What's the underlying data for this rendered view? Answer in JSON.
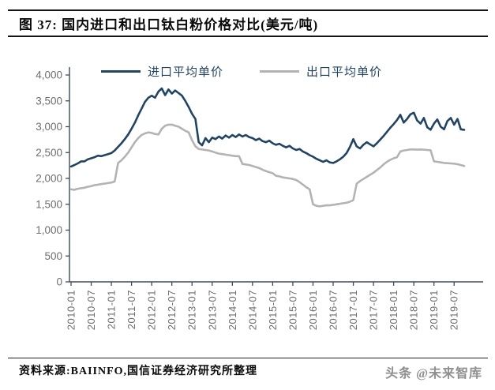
{
  "figure": {
    "number_title": "图 37:  国内进口和出口钛白粉价格对比(美元/吨)",
    "source": "资料来源:BAIINFO,国信证券经济研究所整理",
    "watermark": "头条 @未来智库"
  },
  "chart_data": {
    "type": "line",
    "title": "国内进口和出口钛白粉价格对比(美元/吨)",
    "xlabel": "",
    "ylabel": "",
    "ylim": [
      0,
      4000
    ],
    "y_tick_step": 500,
    "grid": false,
    "legend_position": "top",
    "x_interval": "monthly",
    "x_range": [
      "2010-01",
      "2019-10"
    ],
    "x_tick_labels": [
      "2010-01",
      "2010-07",
      "2011-01",
      "2011-07",
      "2012-01",
      "2012-07",
      "2013-01",
      "2013-07",
      "2014-01",
      "2014-07",
      "2015-01",
      "2015-07",
      "2016-01",
      "2016-07",
      "2017-01",
      "2017-07",
      "2018-01",
      "2018-07",
      "2019-01",
      "2019-07"
    ],
    "x_ticks_every_n_points": 6,
    "series": [
      {
        "name": "进口平均单价",
        "color": "#1f4467",
        "values": [
          2230,
          2260,
          2290,
          2330,
          2330,
          2370,
          2390,
          2410,
          2440,
          2430,
          2450,
          2470,
          2490,
          2540,
          2610,
          2680,
          2760,
          2850,
          2960,
          3080,
          3220,
          3350,
          3480,
          3560,
          3600,
          3560,
          3680,
          3740,
          3610,
          3720,
          3640,
          3700,
          3650,
          3600,
          3500,
          3380,
          3250,
          3150,
          2700,
          2640,
          2780,
          2700,
          2790,
          2760,
          2810,
          2770,
          2830,
          2790,
          2840,
          2800,
          2850,
          2810,
          2840,
          2800,
          2780,
          2740,
          2770,
          2720,
          2700,
          2730,
          2680,
          2650,
          2670,
          2630,
          2600,
          2630,
          2580,
          2550,
          2570,
          2520,
          2490,
          2450,
          2420,
          2380,
          2350,
          2320,
          2350,
          2310,
          2300,
          2330,
          2370,
          2420,
          2490,
          2610,
          2760,
          2620,
          2580,
          2650,
          2700,
          2660,
          2620,
          2680,
          2750,
          2820,
          2900,
          2980,
          3050,
          3130,
          3230,
          3080,
          3150,
          3240,
          3270,
          3120,
          3060,
          3170,
          2990,
          2940,
          3060,
          3140,
          3000,
          2950,
          3110,
          3170,
          3040,
          3150,
          2950,
          2940
        ]
      },
      {
        "name": "出口平均单价",
        "color": "#b3b3b3",
        "values": [
          1790,
          1780,
          1800,
          1810,
          1820,
          1840,
          1850,
          1870,
          1880,
          1890,
          1900,
          1910,
          1920,
          1940,
          2300,
          2350,
          2420,
          2500,
          2600,
          2700,
          2780,
          2840,
          2870,
          2890,
          2880,
          2860,
          2850,
          2960,
          3020,
          3040,
          3040,
          3020,
          3000,
          2960,
          2920,
          2890,
          2740,
          2620,
          2570,
          2560,
          2550,
          2540,
          2520,
          2500,
          2480,
          2470,
          2460,
          2450,
          2440,
          2430,
          2430,
          2280,
          2270,
          2260,
          2240,
          2220,
          2200,
          2170,
          2140,
          2120,
          2100,
          2050,
          2040,
          2020,
          2010,
          2000,
          1990,
          1970,
          1930,
          1880,
          1830,
          1790,
          1500,
          1470,
          1460,
          1470,
          1480,
          1480,
          1490,
          1500,
          1510,
          1520,
          1530,
          1550,
          1580,
          1900,
          1950,
          1990,
          2030,
          2070,
          2110,
          2160,
          2210,
          2270,
          2320,
          2360,
          2390,
          2410,
          2520,
          2540,
          2550,
          2560,
          2560,
          2555,
          2560,
          2555,
          2550,
          2545,
          2330,
          2320,
          2310,
          2300,
          2295,
          2290,
          2285,
          2275,
          2260,
          2240
        ]
      }
    ]
  }
}
